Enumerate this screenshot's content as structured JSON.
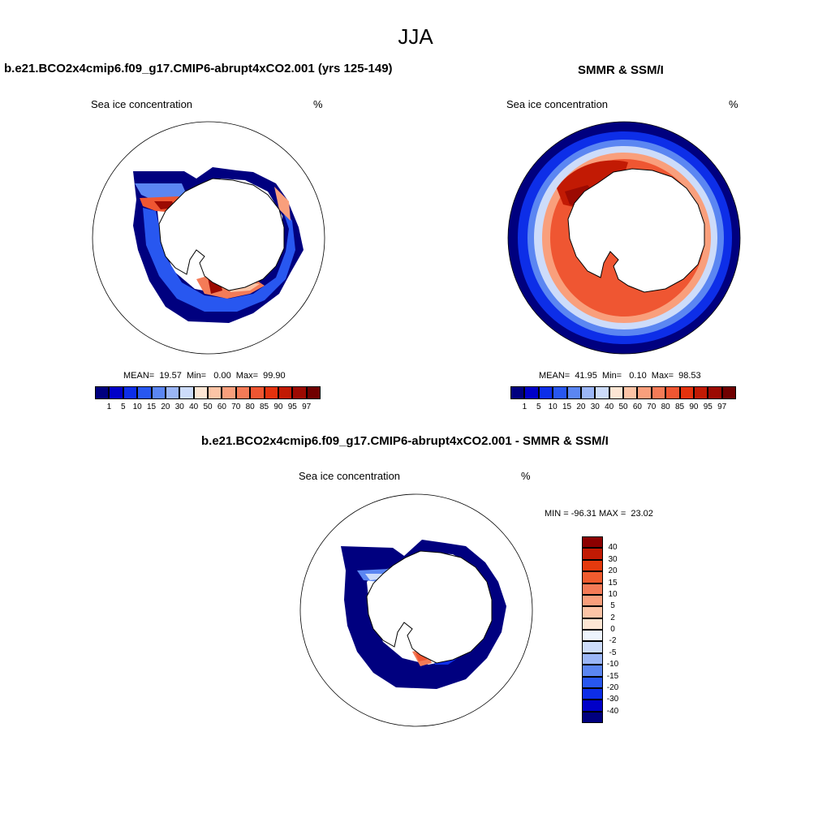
{
  "season_title": "JJA",
  "panels": [
    {
      "title": "b.e21.BCO2x4cmip6.f09_g17.CMIP6-abrupt4xCO2.001 (yrs 125-149)",
      "field": "Sea ice concentration",
      "units": "%",
      "stats": "MEAN=  19.57  Min=   0.00  Max=  99.90"
    },
    {
      "title": "SMMR & SSM/I",
      "field": "Sea ice concentration",
      "units": "%",
      "stats": "MEAN=  41.95  Min=   0.10  Max=  98.53"
    },
    {
      "title": "b.e21.BCO2x4cmip6.f09_g17.CMIP6-abrupt4xCO2.001 - SMMR & SSM/I",
      "field": "Sea ice concentration",
      "units": "%",
      "stats": "MIN = -96.31 MAX =  23.02"
    }
  ],
  "colorbar_conc": {
    "labels": [
      "1",
      "5",
      "10",
      "15",
      "20",
      "30",
      "40",
      "50",
      "60",
      "70",
      "80",
      "85",
      "90",
      "95",
      "97"
    ],
    "colors": [
      "#00007f",
      "#0000c8",
      "#0d2ee8",
      "#2857f0",
      "#5b86f2",
      "#9bb6f6",
      "#cddcfa",
      "#fde6d4",
      "#fcc4a6",
      "#f99f7c",
      "#f47b57",
      "#ef5632",
      "#e4320e",
      "#c21a04",
      "#9c0a02",
      "#700000"
    ]
  },
  "colorbar_diff": {
    "labels": [
      "40",
      "30",
      "20",
      "15",
      "10",
      "5",
      "2",
      "0",
      "-2",
      "-5",
      "-10",
      "-15",
      "-20",
      "-30",
      "-40"
    ],
    "colors": [
      "#8c0000",
      "#c21a04",
      "#e43a0e",
      "#f05b2e",
      "#f47b57",
      "#f99f7c",
      "#fcc4a6",
      "#fde6d4",
      "#eef4fd",
      "#cddcfa",
      "#9bb6f6",
      "#5b86f2",
      "#2857f0",
      "#0d2ee8",
      "#0000c8",
      "#00007f"
    ]
  }
}
